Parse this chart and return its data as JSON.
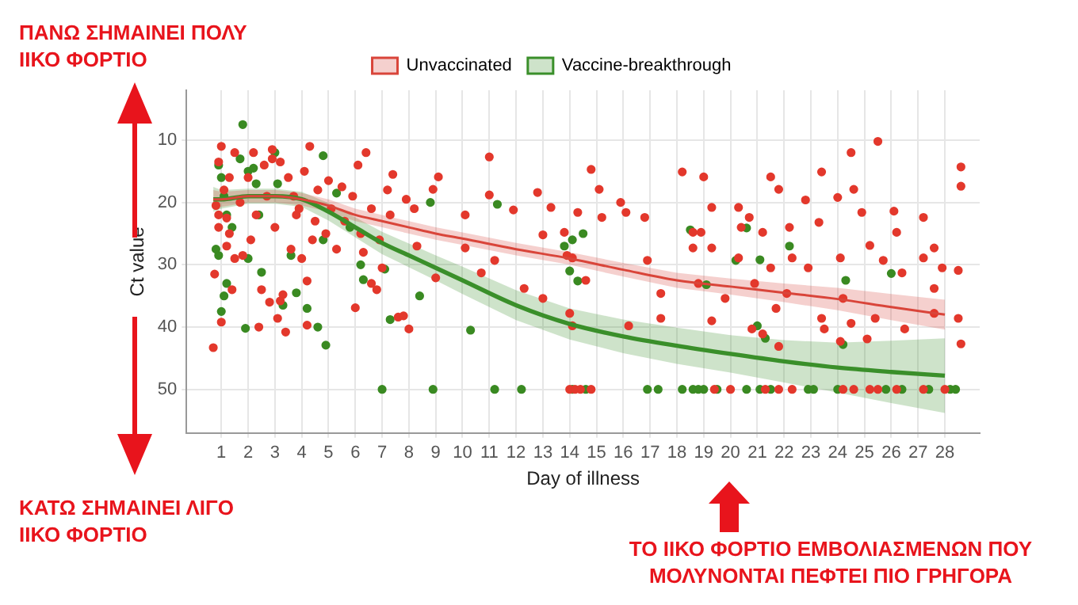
{
  "chart_data": {
    "type": "scatter",
    "xlabel": "Day of illness",
    "ylabel": "Ct value",
    "xlim": [
      -0.3,
      29.3
    ],
    "ylim": [
      57,
      2
    ],
    "xticks": [
      1,
      2,
      3,
      4,
      5,
      6,
      7,
      8,
      9,
      10,
      11,
      12,
      13,
      14,
      15,
      16,
      17,
      18,
      19,
      20,
      21,
      22,
      23,
      24,
      25,
      26,
      27,
      28
    ],
    "yticks": [
      10,
      20,
      30,
      40,
      50
    ],
    "grid": true,
    "legend": "top",
    "marker": "circle",
    "annotations": [
      "ΠΑΝΩ ΣΗΜΑΙΝΕΙ ΠΟΛΥ ΙΙΚΟ ΦΟΡΤΙΟ",
      "ΚΑΤΩ ΣΗΜΑΙΝΕΙ ΛΙΓΟ ΙΙΚΟ ΦΟΡΤΙΟ",
      "ΤΟ ΙΙΚΟ ΦΟΡΤΙΟ ΕΜΒΟΛΙΑΣΜΕΝΩΝ ΠΟΥ ΜΟΛΥΝΟΝΤΑΙ ΠΕΦΤΕΙ ΠΙΟ ΓΡΗΓΟΡΑ"
    ],
    "series": [
      {
        "type": "scatter",
        "color": "#e3382c",
        "x": [
          0.7,
          0.75,
          0.9,
          0.8,
          0.9,
          1.0,
          1.1,
          1.2,
          1.3,
          1.0,
          1.4,
          1.5,
          1.3,
          1.5,
          1.2,
          0.9,
          1.7,
          1.8,
          2.0,
          2.2,
          2.3,
          2.4,
          2.5,
          2.6,
          2.8,
          2.1,
          2.7,
          2.9,
          3.0,
          3.1,
          3.2,
          3.4,
          3.3,
          3.6,
          3.5,
          3.8,
          2.9,
          3.7,
          3.2,
          3.9,
          4.0,
          4.2,
          4.2,
          4.3,
          4.4,
          4.1,
          4.5,
          4.6,
          5.0,
          5.1,
          5.3,
          5.5,
          4.9,
          5.6,
          6.0,
          6.1,
          6.2,
          5.9,
          6.4,
          6.6,
          6.3,
          6.6,
          6.8,
          7.0,
          7.2,
          7.3,
          7.4,
          6.9,
          7.6,
          7.8,
          8.0,
          8.2,
          8.3,
          7.9,
          8.9,
          9.1,
          9.0,
          10.1,
          10.1,
          10.7,
          11.0,
          11.0,
          11.2,
          11.9,
          12.3,
          12.8,
          13.0,
          13.0,
          13.3,
          13.8,
          13.9,
          14.0,
          14.1,
          14.3,
          14.1,
          14.6,
          14.8,
          15.1,
          15.2,
          15.9,
          16.1,
          16.2,
          16.8,
          16.9,
          17.4,
          17.4,
          18.2,
          18.6,
          18.6,
          19.0,
          18.9,
          19.3,
          19.3,
          18.8,
          19.3,
          19.8,
          20.3,
          20.4,
          20.3,
          20.7,
          20.9,
          20.8,
          21.2,
          21.5,
          21.2,
          21.5,
          21.8,
          21.7,
          21.8,
          22.2,
          22.3,
          22.1,
          22.8,
          22.9,
          23.4,
          23.3,
          23.4,
          23.5,
          24.0,
          24.1,
          24.2,
          24.1,
          24.5,
          24.5,
          24.6,
          24.9,
          25.2,
          25.1,
          25.4,
          25.5,
          25.7,
          26.1,
          26.2,
          26.4,
          26.5,
          27.2,
          27.2,
          27.6,
          27.6,
          27.6,
          27.9,
          28.5,
          28.6,
          28.6,
          28.5,
          28.6,
          14.0,
          14.2,
          14.4,
          14.8,
          19.4,
          20.0,
          21.3,
          21.8,
          22.3,
          24.2,
          24.6,
          25.2,
          25.5,
          26.2,
          27.2,
          28.0
        ],
        "values": [
          43.3,
          31.5,
          22,
          20.5,
          13.5,
          11,
          18,
          22.5,
          25,
          39.2,
          34,
          29,
          16,
          12,
          27,
          24,
          20,
          28.5,
          16,
          12,
          22,
          40,
          34,
          14,
          36,
          26,
          19,
          13,
          24,
          38.6,
          35.8,
          40.8,
          34.8,
          27.5,
          16,
          22,
          11.5,
          19,
          13.5,
          21,
          29,
          39.7,
          32.6,
          11,
          26,
          15,
          23,
          18,
          16.5,
          21,
          27.5,
          17.5,
          25,
          23,
          36.9,
          14,
          25,
          19,
          12,
          21,
          28,
          33,
          34,
          30.5,
          18,
          22,
          15.5,
          26,
          38.4,
          38.2,
          40.3,
          21,
          27,
          19.5,
          17.9,
          15.9,
          32.1,
          22,
          27.3,
          31.3,
          12.7,
          18.8,
          29.3,
          21.2,
          33.8,
          18.4,
          25.2,
          35.4,
          20.8,
          24.8,
          28.5,
          37.8,
          39.8,
          21.6,
          28.9,
          32.5,
          14.7,
          17.9,
          22.4,
          20,
          21.6,
          39.8,
          22.4,
          29.3,
          34.6,
          38.6,
          15.1,
          24.8,
          27.3,
          15.9,
          24.8,
          20.8,
          27.3,
          33,
          39,
          35.4,
          20.8,
          24,
          28.9,
          22.4,
          33,
          40.3,
          41.1,
          15.9,
          24.8,
          30.5,
          17.9,
          37,
          43.1,
          24,
          28.9,
          34.6,
          19.6,
          30.5,
          15.1,
          23.2,
          38.6,
          40.3,
          19.2,
          28.9,
          35.4,
          42.3,
          12,
          39.4,
          17.9,
          21.6,
          26.9,
          41.9,
          38.6,
          10.2,
          29.3,
          21.4,
          24.8,
          31.3,
          40.3,
          22.4,
          28.9,
          27.3,
          33.8,
          37.8,
          30.5,
          30.9,
          14.3,
          17.4,
          38.6,
          42.7,
          50,
          50,
          50,
          50,
          50,
          50,
          50,
          50,
          50,
          50,
          50,
          50,
          50,
          50,
          50,
          50
        ]
      },
      {
        "type": "scatter",
        "color": "#3a8a22",
        "x": [
          1.0,
          0.9,
          0.8,
          1.2,
          1.1,
          0.9,
          1.0,
          1.1,
          1.2,
          1.4,
          1.8,
          1.9,
          1.7,
          2.0,
          2.2,
          2.3,
          2.0,
          2.4,
          2.5,
          3.0,
          3.1,
          3.3,
          3.6,
          3.8,
          4.2,
          4.6,
          4.9,
          4.8,
          4.8,
          5.3,
          5.8,
          6.3,
          6.2,
          7.1,
          7.3,
          8.4,
          8.8,
          10.3,
          11.3,
          13.8,
          14.0,
          14.3,
          14.5,
          14.1,
          18.5,
          20.6,
          20.2,
          21.0,
          21.1,
          21.3,
          22.2,
          24.2,
          24.3,
          26.0,
          19.1,
          7.0,
          8.9,
          11.2,
          12.2,
          14.1,
          14.6,
          16.9,
          17.3,
          18.2,
          18.6,
          18.8,
          19.0,
          19.5,
          20.6,
          21.1,
          21.5,
          22.9,
          23.1,
          24.0,
          25.8,
          26.4,
          27.4,
          28.2,
          28.4
        ],
        "values": [
          37.5,
          28.5,
          27.5,
          33,
          35,
          14,
          16,
          19,
          22,
          24,
          7.5,
          40.2,
          13,
          15,
          14.5,
          17,
          29,
          22,
          31.2,
          12,
          17,
          36.5,
          28.5,
          34.5,
          37,
          40,
          42.9,
          12.5,
          26,
          18.5,
          24,
          32.4,
          30,
          30.7,
          38.8,
          35,
          20,
          40.5,
          20.3,
          27,
          31,
          32.6,
          25,
          26,
          24.4,
          24.1,
          29.3,
          39.8,
          29.2,
          41.8,
          27,
          42.8,
          32.5,
          31.4,
          33.2,
          50,
          50,
          50,
          50,
          50,
          50,
          50,
          50,
          50,
          50,
          50,
          50,
          50,
          50,
          50,
          50,
          50,
          50,
          50,
          50,
          50,
          50,
          50,
          50
        ]
      },
      {
        "type": "line",
        "marker": "none",
        "name": "Unvaccinated",
        "color": "#d9453a",
        "x": [
          0.7,
          1,
          2,
          3,
          4,
          5,
          6,
          7,
          8,
          9,
          10,
          12,
          14,
          16,
          18,
          20,
          22,
          24,
          26,
          28
        ],
        "values": [
          19.5,
          19.5,
          19,
          19,
          19.5,
          20.5,
          22,
          23,
          24,
          25,
          25.8,
          27.5,
          29,
          30.8,
          32.5,
          33.5,
          34.5,
          35.5,
          36.8,
          38
        ],
        "lower": [
          18,
          18.3,
          18,
          18,
          18.5,
          19.5,
          21,
          22,
          23,
          24,
          24.8,
          26.5,
          28,
          29.7,
          31.3,
          32.2,
          33,
          33.7,
          34.7,
          35.6
        ],
        "upper": [
          21,
          20.7,
          20,
          20,
          20.5,
          21.5,
          23,
          24,
          25,
          26,
          26.8,
          28.5,
          30,
          31.9,
          33.7,
          34.8,
          36,
          37.3,
          38.9,
          40.4
        ]
      },
      {
        "type": "line",
        "marker": "none",
        "name": "Vaccine-breakthrough",
        "color": "#3a8f2a",
        "x": [
          0.7,
          1,
          2,
          3,
          4,
          5,
          6,
          7,
          8,
          9,
          10,
          12,
          14,
          16,
          18,
          20,
          22,
          24,
          26,
          28
        ],
        "values": [
          19.5,
          19.5,
          19,
          19,
          19.5,
          21.5,
          24,
          26.5,
          28.5,
          30.5,
          32.5,
          36.5,
          39.5,
          41.5,
          43,
          44.3,
          45.5,
          46.5,
          47.2,
          47.8
        ],
        "lower": [
          17.5,
          18,
          17.8,
          17.8,
          18.3,
          20.1,
          22.4,
          24.7,
          26.6,
          28.5,
          30.3,
          34.1,
          37,
          38.8,
          40.1,
          41.3,
          42.1,
          42.5,
          42.2,
          41.8
        ],
        "upper": [
          21.5,
          21,
          20.2,
          20.2,
          20.7,
          22.9,
          25.6,
          28.3,
          30.4,
          32.5,
          34.7,
          38.9,
          42,
          44.2,
          45.9,
          47.3,
          48.9,
          50.5,
          52.2,
          53.8
        ]
      }
    ]
  }
}
